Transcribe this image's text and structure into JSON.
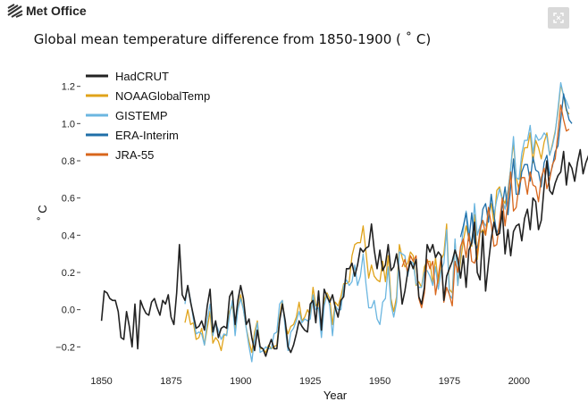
{
  "header": {
    "logo_text": "Met Office",
    "logo_icon": "met-office-logo-icon",
    "expand_icon": "fullscreen-expand-icon"
  },
  "chart_data": {
    "type": "line",
    "title": "Global mean temperature difference from 1850-1900 ( ˚ C)",
    "xlabel": "Year",
    "ylabel": "˚ C",
    "xlim": [
      1845,
      2019
    ],
    "ylim": [
      -0.28,
      1.28
    ],
    "xticks": [
      1850,
      1875,
      1900,
      1925,
      1950,
      1975,
      2000
    ],
    "yticks": [
      -0.2,
      0.0,
      0.2,
      0.4,
      0.6,
      0.8,
      1.0,
      1.2
    ],
    "ytick_labels": [
      "−0.2",
      "0.0",
      "0.2",
      "0.4",
      "0.6",
      "0.8",
      "1.0",
      "1.2"
    ],
    "grid": false,
    "legend_position": "top-left",
    "series": [
      {
        "name": "HadCRUT",
        "color": "#222222",
        "x_start": 1850,
        "values": [
          -0.06,
          0.1,
          0.09,
          0.06,
          0.05,
          0.05,
          -0.01,
          -0.15,
          -0.16,
          -0.01,
          -0.09,
          -0.2,
          0.03,
          -0.21,
          0.05,
          0.01,
          -0.02,
          -0.03,
          0.04,
          0.06,
          0.01,
          -0.03,
          0.05,
          0.03,
          0.08,
          -0.04,
          -0.08,
          0.09,
          0.35,
          0.08,
          0.05,
          0.13,
          0.04,
          -0.03,
          -0.1,
          -0.09,
          -0.06,
          -0.11,
          0.02,
          0.11,
          -0.12,
          -0.06,
          -0.15,
          -0.1,
          -0.09,
          -0.1,
          0.07,
          0.1,
          -0.08,
          0.05,
          0.13,
          0.06,
          -0.08,
          -0.05,
          -0.15,
          -0.22,
          -0.11,
          -0.2,
          -0.21,
          -0.25,
          -0.2,
          -0.16,
          -0.21,
          -0.21,
          -0.06,
          0.03,
          -0.06,
          -0.2,
          -0.23,
          -0.19,
          -0.13,
          -0.06,
          -0.09,
          -0.11,
          -0.12,
          0.03,
          0.05,
          -0.07,
          0.1,
          -0.11,
          0.11,
          0.07,
          0.04,
          0.08,
          0.01,
          -0.04,
          0.05,
          0.07,
          0.22,
          0.22,
          0.25,
          0.18,
          0.24,
          0.33,
          0.31,
          0.33,
          0.34,
          0.46,
          0.32,
          0.22,
          0.32,
          0.21,
          0.24,
          0.35,
          0.21,
          0.23,
          0.3,
          0.2,
          0.03,
          0.1,
          0.2,
          0.26,
          0.22,
          0.27,
          0.07,
          0.03,
          0.12,
          0.35,
          0.31,
          0.35,
          0.28,
          0.31,
          0.29,
          0.05,
          0.18,
          0.22,
          0.26,
          0.32,
          0.27,
          0.17,
          0.29,
          0.12,
          0.32,
          0.36,
          0.47,
          0.2,
          0.16,
          0.42,
          0.1,
          0.25,
          0.38,
          0.47,
          0.4,
          0.41,
          0.53,
          0.3,
          0.43,
          0.29,
          0.42,
          0.45,
          0.46,
          0.37,
          0.49,
          0.54,
          0.43,
          0.6,
          0.58,
          0.43,
          0.48,
          0.66,
          0.8,
          0.64,
          0.62,
          0.68,
          0.72,
          0.74,
          0.85,
          0.67,
          0.79,
          0.76,
          0.69,
          0.79,
          0.86,
          0.73,
          0.79,
          0.83,
          0.96,
          1.1,
          1.05,
          0.98,
          0.9
        ],
        "emphasis": true
      },
      {
        "name": "NOAAGlobalTemp",
        "color": "#e0a31a",
        "x_start": 1880,
        "values": [
          -0.07,
          -0.0,
          -0.08,
          -0.07,
          -0.16,
          -0.15,
          -0.1,
          -0.19,
          -0.1,
          -0.01,
          -0.18,
          -0.15,
          -0.17,
          -0.22,
          -0.14,
          -0.13,
          -0.01,
          0.02,
          -0.1,
          0.0,
          0.08,
          0.0,
          -0.1,
          -0.17,
          -0.23,
          -0.12,
          -0.06,
          -0.21,
          -0.21,
          -0.23,
          -0.19,
          -0.21,
          -0.2,
          -0.19,
          -0.04,
          0.05,
          -0.08,
          -0.13,
          -0.09,
          -0.08,
          -0.04,
          0.04,
          -0.06,
          -0.04,
          0.0,
          -0.03,
          0.12,
          0.02,
          0.04,
          -0.08,
          0.05,
          0.09,
          0.06,
          -0.08,
          0.04,
          0.02,
          0.07,
          0.14,
          0.14,
          0.15,
          0.29,
          0.35,
          0.36,
          0.36,
          0.45,
          0.31,
          0.17,
          0.24,
          0.18,
          0.16,
          0.15,
          0.26,
          0.15,
          0.29,
          0.06,
          -0.01,
          0.07,
          0.35,
          0.28,
          0.23,
          0.25,
          0.31,
          0.29,
          0.13,
          0.15,
          0.12,
          0.23,
          0.26,
          0.26,
          0.14,
          0.28,
          0.14,
          0.27,
          0.3,
          0.46,
          0.11,
          0.09,
          0.37,
          0.13,
          0.26,
          0.37,
          0.45,
          0.38,
          0.34,
          0.51,
          0.27,
          0.41,
          0.43,
          0.4,
          0.5,
          0.57,
          0.46,
          0.64,
          0.66,
          0.6,
          0.57,
          0.64,
          0.76,
          0.9,
          0.71,
          0.64,
          0.79,
          0.87,
          0.87,
          0.95,
          0.79,
          0.91,
          0.87,
          0.81,
          0.9,
          0.95,
          0.83,
          0.89,
          0.96,
          1.06,
          1.21,
          1.15,
          1.07,
          1.05
        ]
      },
      {
        "name": "GISTEMP",
        "color": "#6bb6e0",
        "x_start": 1880,
        "values": [
          0.03,
          0.13,
          0.05,
          -0.05,
          -0.13,
          -0.12,
          -0.13,
          -0.19,
          -0.06,
          0.03,
          -0.14,
          -0.07,
          -0.11,
          -0.16,
          -0.13,
          -0.14,
          -0.03,
          0.05,
          -0.14,
          0.0,
          0.06,
          -0.0,
          -0.1,
          -0.2,
          -0.28,
          -0.15,
          -0.07,
          -0.23,
          -0.22,
          -0.2,
          -0.21,
          -0.21,
          -0.13,
          -0.12,
          0.03,
          0.05,
          -0.1,
          -0.22,
          -0.12,
          -0.1,
          -0.06,
          -0.01,
          -0.07,
          -0.05,
          -0.06,
          -0.05,
          0.08,
          0.0,
          0.01,
          -0.15,
          0.02,
          0.08,
          0.02,
          -0.14,
          0.02,
          0.0,
          0.0,
          0.13,
          0.16,
          0.13,
          0.15,
          0.24,
          0.13,
          0.18,
          0.3,
          0.14,
          0.01,
          0.01,
          0.05,
          -0.05,
          -0.08,
          0.04,
          0.06,
          0.23,
          0.03,
          -0.04,
          0.04,
          0.31,
          0.3,
          0.29,
          0.18,
          0.26,
          0.25,
          0.14,
          0.12,
          0.12,
          0.2,
          0.21,
          0.18,
          0.13,
          0.23,
          0.11,
          0.21,
          0.25,
          0.43,
          0.08,
          0.06,
          0.38,
          0.13,
          0.31,
          0.43,
          0.53,
          0.42,
          0.35,
          0.57,
          0.4,
          0.45,
          0.48,
          0.45,
          0.49,
          0.61,
          0.51,
          0.59,
          0.65,
          0.59,
          0.54,
          0.63,
          0.76,
          0.93,
          0.71,
          0.7,
          0.84,
          0.91,
          0.91,
          0.99,
          0.84,
          0.94,
          0.91,
          0.92,
          0.95,
          0.93,
          0.83,
          0.88,
          0.95,
          1.08,
          1.22,
          1.15,
          1.12,
          1.08
        ]
      },
      {
        "name": "ERA-Interim",
        "color": "#1f6fa8",
        "x_start": 1979,
        "values": [
          0.39,
          0.45,
          0.52,
          0.37,
          0.52,
          0.36,
          0.33,
          0.41,
          0.54,
          0.57,
          0.47,
          0.62,
          0.51,
          0.41,
          0.45,
          0.56,
          0.66,
          0.51,
          0.66,
          0.81,
          0.62,
          0.62,
          0.74,
          0.78,
          0.78,
          0.69,
          0.82,
          0.75,
          0.74,
          0.66,
          0.79,
          0.83,
          0.72,
          0.77,
          0.85,
          0.88,
          1.02,
          1.16,
          1.08,
          1.02,
          1.0
        ]
      },
      {
        "name": "JRA-55",
        "color": "#d8661c",
        "x_start": 1958,
        "values": [
          0.23,
          0.27,
          0.2,
          0.29,
          0.26,
          0.29,
          0.06,
          0.01,
          0.09,
          0.27,
          0.22,
          0.26,
          0.08,
          0.18,
          0.28,
          0.04,
          0.12,
          0.08,
          0.02,
          0.26,
          0.2,
          0.34,
          0.38,
          0.28,
          0.41,
          0.26,
          0.25,
          0.3,
          0.43,
          0.48,
          0.4,
          0.55,
          0.46,
          0.34,
          0.35,
          0.47,
          0.6,
          0.45,
          0.58,
          0.74,
          0.53,
          0.55,
          0.67,
          0.71,
          0.71,
          0.62,
          0.74,
          0.67,
          0.66,
          0.58,
          0.71,
          0.76,
          0.65,
          0.7,
          0.78,
          0.81,
          0.95,
          1.1,
          1.02,
          0.96,
          0.97
        ]
      }
    ]
  }
}
